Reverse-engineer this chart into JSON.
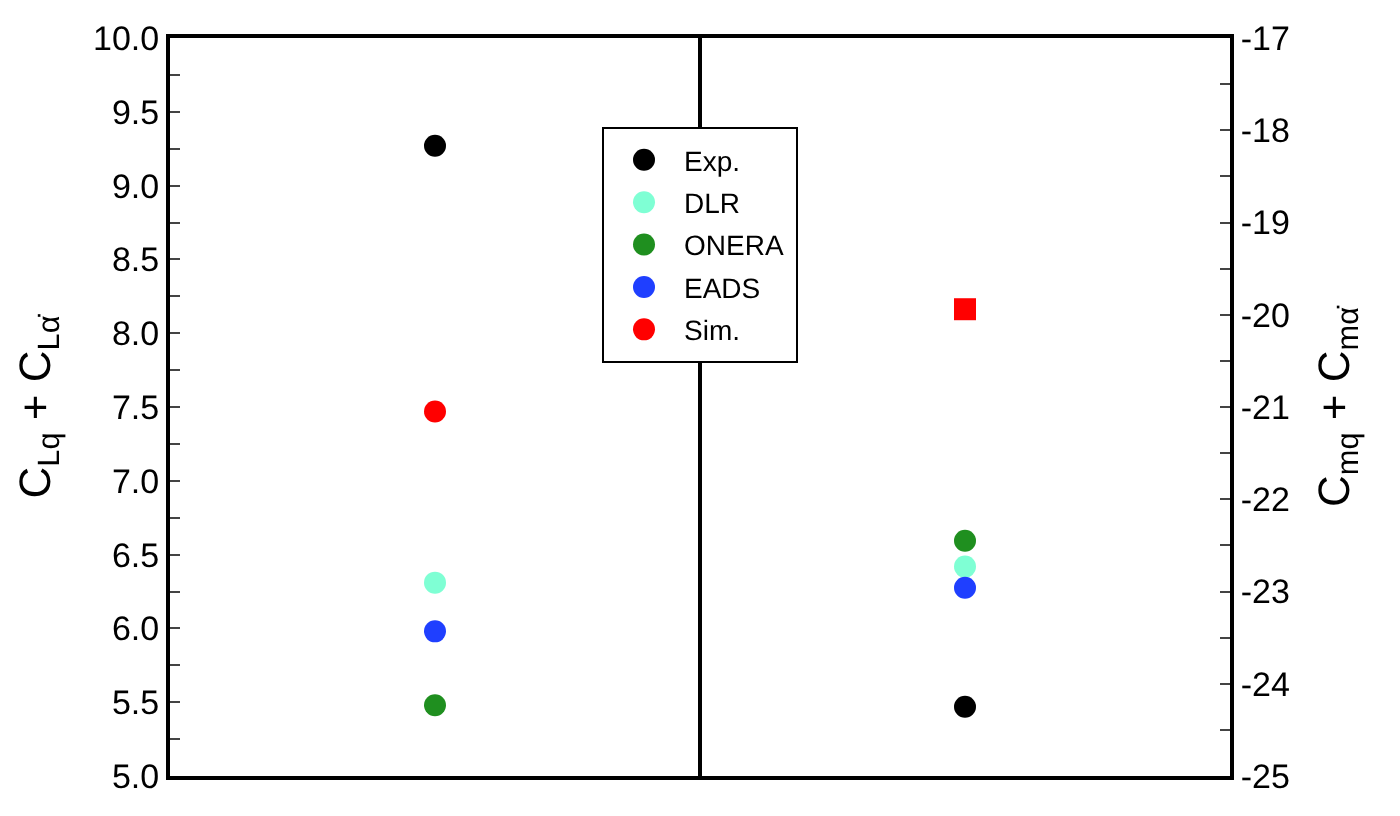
{
  "chart_data": {
    "type": "scatter",
    "ylabel": "C$_{Lq}$ + C$_{Lα̇}$",
    "y2label": "C$_{mq}$ + C$_{mα̇}$",
    "categories": [
      null,
      null
    ],
    "series": [
      {
        "name": "Exp.",
        "color": "#000000",
        "values": [
          9.27,
          null
        ]
      },
      {
        "name": "DLR",
        "color": "#7fffd4",
        "values": [
          6.31,
          null
        ]
      },
      {
        "name": "ONERA",
        "color": "#1f8f1f",
        "values": [
          5.48,
          null
        ]
      },
      {
        "name": "EADS",
        "color": "#1f3fff",
        "values": [
          5.98,
          null
        ]
      },
      {
        "name": "Sim.",
        "color": "#ff0000",
        "values": [
          7.47,
          null
        ]
      },
      {
        "color": "#000000",
        "values": [
          null,
          -24.25
        ],
        "axis": "y2"
      },
      {
        "color": "#7fffd4",
        "values": [
          null,
          -22.73
        ],
        "axis": "y2"
      },
      {
        "color": "#1f8f1f",
        "values": [
          null,
          -22.45
        ],
        "axis": "y2"
      },
      {
        "color": "#1f3fff",
        "values": [
          null,
          -22.96
        ],
        "axis": "y2"
      },
      {
        "color": "#ff0000",
        "values": [
          null,
          -19.94
        ],
        "axis": "y2",
        "marker": "square"
      }
    ],
    "ylim": [
      5,
      10
    ],
    "yticks": [
      "5.0",
      {
        "value": 5.25,
        "label": null
      },
      {
        "value": 5.5,
        "label": "5.5"
      },
      {
        "value": 5.75,
        "label": null
      },
      {
        "value": 6,
        "label": "6.0"
      },
      {
        "value": 6.25,
        "label": null
      },
      {
        "value": 6.5,
        "label": "6.5"
      },
      {
        "value": 6.75,
        "label": null
      },
      {
        "value": 7,
        "label": "7.0"
      },
      {
        "value": 7.25,
        "label": null
      },
      {
        "value": 7.5,
        "label": "7.5"
      },
      {
        "value": 7.75,
        "label": null
      },
      {
        "value": 8,
        "label": "8.0"
      },
      {
        "value": 8.25,
        "label": null
      },
      {
        "value": 8.5,
        "label": "8.5"
      },
      {
        "value": 8.75,
        "label": null
      },
      {
        "value": 9,
        "label": "9.0"
      },
      {
        "value": 9.25,
        "label": null
      },
      {
        "value": 9.5,
        "label": "9.5"
      },
      {
        "value": 9.75,
        "label": null
      },
      {
        "value": 10,
        "label": "10.0"
      }
    ],
    "y2lim": [
      -25,
      -17
    ],
    "y2ticks": [
      -25,
      {
        "value": -24.5,
        "label": null
      },
      -24,
      {
        "value": -23.5,
        "label": null
      },
      -23,
      {
        "value": -22.5,
        "label": null
      },
      -22,
      {
        "value": -21.5,
        "label": null
      },
      -21,
      {
        "value": -20.5,
        "label": null
      },
      -20,
      {
        "value": -19.5,
        "label": null
      },
      -19,
      {
        "value": -18.5,
        "label": null
      },
      -18,
      {
        "value": -17.5,
        "label": null
      },
      -17
    ],
    "marker": "circle",
    "legend": "top"
  }
}
